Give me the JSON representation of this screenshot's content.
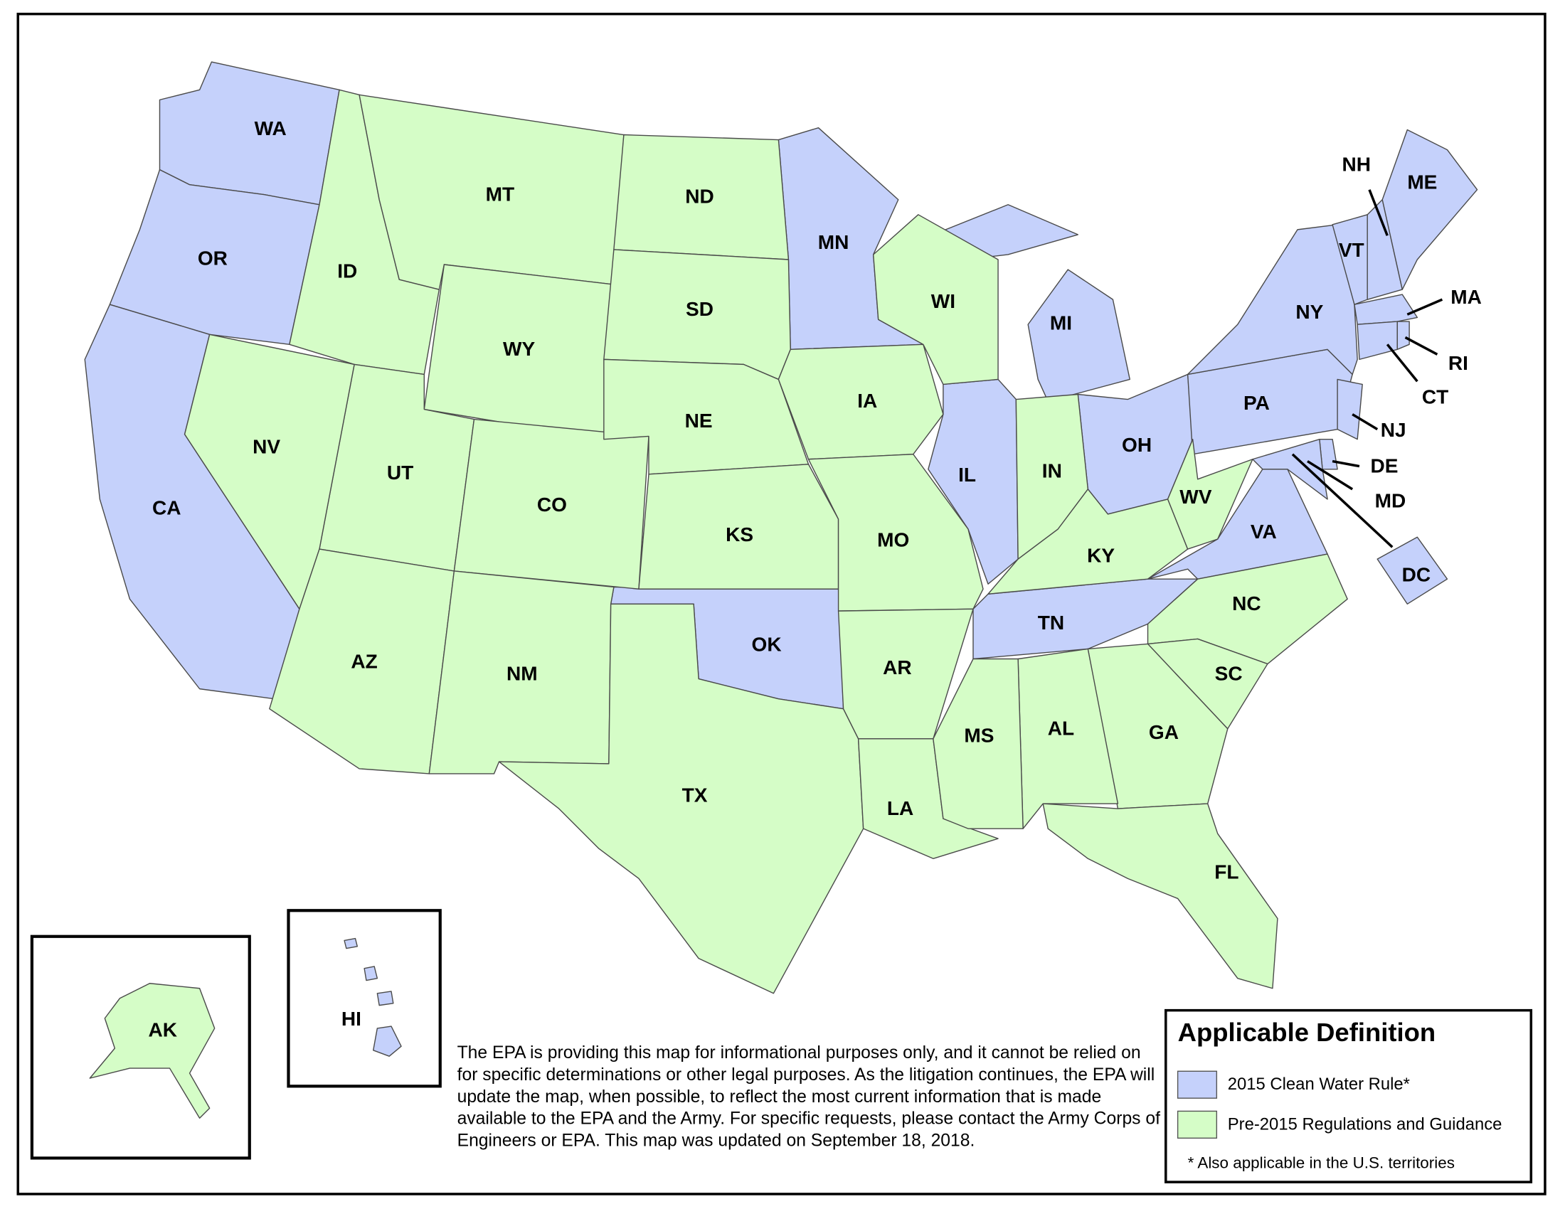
{
  "map": {
    "legend": {
      "title": "Applicable Definition",
      "footnote": "* Also applicable in the U.S. territories",
      "items": [
        {
          "label": "2015 Clean Water Rule*",
          "color": "#c5d1fb",
          "states": [
            "WA",
            "OR",
            "CA",
            "MN",
            "MI",
            "IL",
            "OH",
            "TN",
            "OK",
            "PA",
            "NY",
            "NJ",
            "DE",
            "MD",
            "DC",
            "VA",
            "VT",
            "NH",
            "ME",
            "MA",
            "CT",
            "RI",
            "HI"
          ]
        },
        {
          "label": "Pre-2015 Regulations and Guidance",
          "color": "#d5fdc7",
          "states": [
            "ID",
            "MT",
            "WY",
            "UT",
            "NV",
            "AZ",
            "CO",
            "NM",
            "ND",
            "SD",
            "NE",
            "KS",
            "TX",
            "IA",
            "MO",
            "AR",
            "LA",
            "WI",
            "IN",
            "KY",
            "WV",
            "NC",
            "SC",
            "GA",
            "FL",
            "AL",
            "MS",
            "AK"
          ]
        }
      ]
    },
    "disclaimer": "The EPA is providing this map for informational purposes only, and it cannot be relied on for specific determinations or other legal purposes. As the litigation continues, the EPA will update the map, when possible, to reflect the most current information that is made available to the EPA and the Army. For specific requests, please contact the Army Corps of Engineers or EPA. This map was updated on September 18, 2018."
  }
}
